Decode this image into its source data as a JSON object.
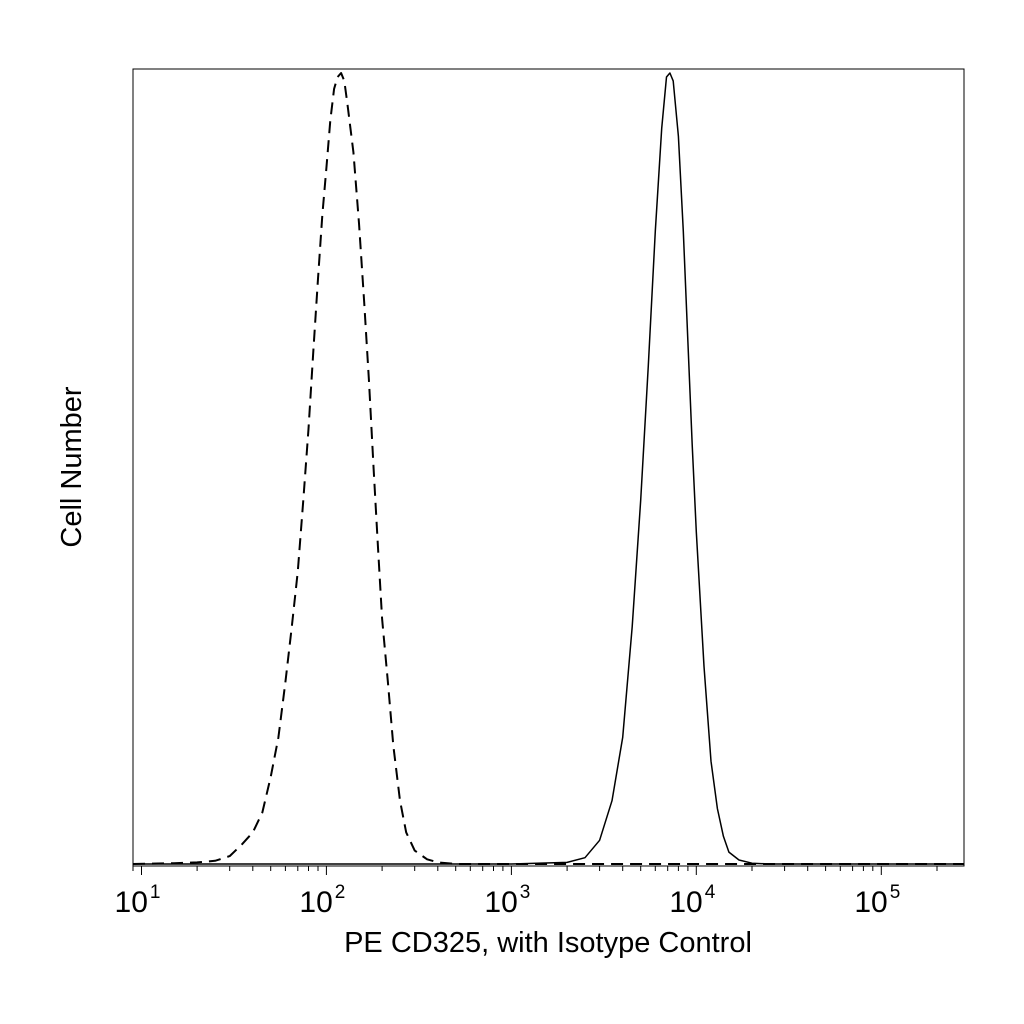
{
  "chart_data": {
    "type": "line",
    "xlabel": "PE CD325, with Isotype Control",
    "ylabel": "Cell Number",
    "xscale": "log",
    "xlim": [
      9,
      280000
    ],
    "ylim": [
      0,
      1
    ],
    "grid": false,
    "legend": "none",
    "y_tick_labels": false,
    "x_ticks": [
      {
        "value": 10,
        "base": "10",
        "exponent": "1"
      },
      {
        "value": 100,
        "base": "10",
        "exponent": "2"
      },
      {
        "value": 1000,
        "base": "10",
        "exponent": "3"
      },
      {
        "value": 10000,
        "base": "10",
        "exponent": "4"
      },
      {
        "value": 100000,
        "base": "10",
        "exponent": "5"
      }
    ],
    "series": [
      {
        "style": "dashed",
        "color": "#000000",
        "points": [
          [
            9,
            0.0
          ],
          [
            15,
            0.001
          ],
          [
            20,
            0.002
          ],
          [
            25,
            0.004
          ],
          [
            30,
            0.01
          ],
          [
            35,
            0.025
          ],
          [
            40,
            0.04
          ],
          [
            45,
            0.065
          ],
          [
            50,
            0.11
          ],
          [
            55,
            0.16
          ],
          [
            60,
            0.23
          ],
          [
            65,
            0.3
          ],
          [
            70,
            0.37
          ],
          [
            75,
            0.46
          ],
          [
            80,
            0.55
          ],
          [
            85,
            0.65
          ],
          [
            90,
            0.74
          ],
          [
            95,
            0.82
          ],
          [
            100,
            0.88
          ],
          [
            105,
            0.94
          ],
          [
            110,
            0.98
          ],
          [
            115,
            0.995
          ],
          [
            120,
            1.0
          ],
          [
            125,
            0.99
          ],
          [
            130,
            0.96
          ],
          [
            140,
            0.9
          ],
          [
            150,
            0.81
          ],
          [
            160,
            0.71
          ],
          [
            170,
            0.61
          ],
          [
            180,
            0.5
          ],
          [
            190,
            0.4
          ],
          [
            200,
            0.31
          ],
          [
            215,
            0.23
          ],
          [
            230,
            0.15
          ],
          [
            250,
            0.08
          ],
          [
            270,
            0.04
          ],
          [
            300,
            0.017
          ],
          [
            350,
            0.006
          ],
          [
            400,
            0.002
          ],
          [
            500,
            0.0
          ],
          [
            1000,
            0.0
          ],
          [
            2000,
            0.0
          ],
          [
            280000,
            0.0
          ]
        ]
      },
      {
        "style": "solid",
        "color": "#000000",
        "points": [
          [
            9,
            0.0
          ],
          [
            1000,
            0.0
          ],
          [
            2000,
            0.002
          ],
          [
            2500,
            0.008
          ],
          [
            3000,
            0.03
          ],
          [
            3500,
            0.08
          ],
          [
            4000,
            0.16
          ],
          [
            4500,
            0.3
          ],
          [
            5000,
            0.46
          ],
          [
            5500,
            0.63
          ],
          [
            6000,
            0.8
          ],
          [
            6500,
            0.93
          ],
          [
            6900,
            0.995
          ],
          [
            7200,
            1.0
          ],
          [
            7500,
            0.99
          ],
          [
            8000,
            0.92
          ],
          [
            8500,
            0.8
          ],
          [
            9000,
            0.66
          ],
          [
            9500,
            0.53
          ],
          [
            10000,
            0.42
          ],
          [
            11000,
            0.25
          ],
          [
            12000,
            0.13
          ],
          [
            13000,
            0.07
          ],
          [
            14000,
            0.035
          ],
          [
            15000,
            0.015
          ],
          [
            17000,
            0.005
          ],
          [
            20000,
            0.001
          ],
          [
            25000,
            0.0
          ],
          [
            280000,
            0.0
          ]
        ]
      }
    ]
  }
}
